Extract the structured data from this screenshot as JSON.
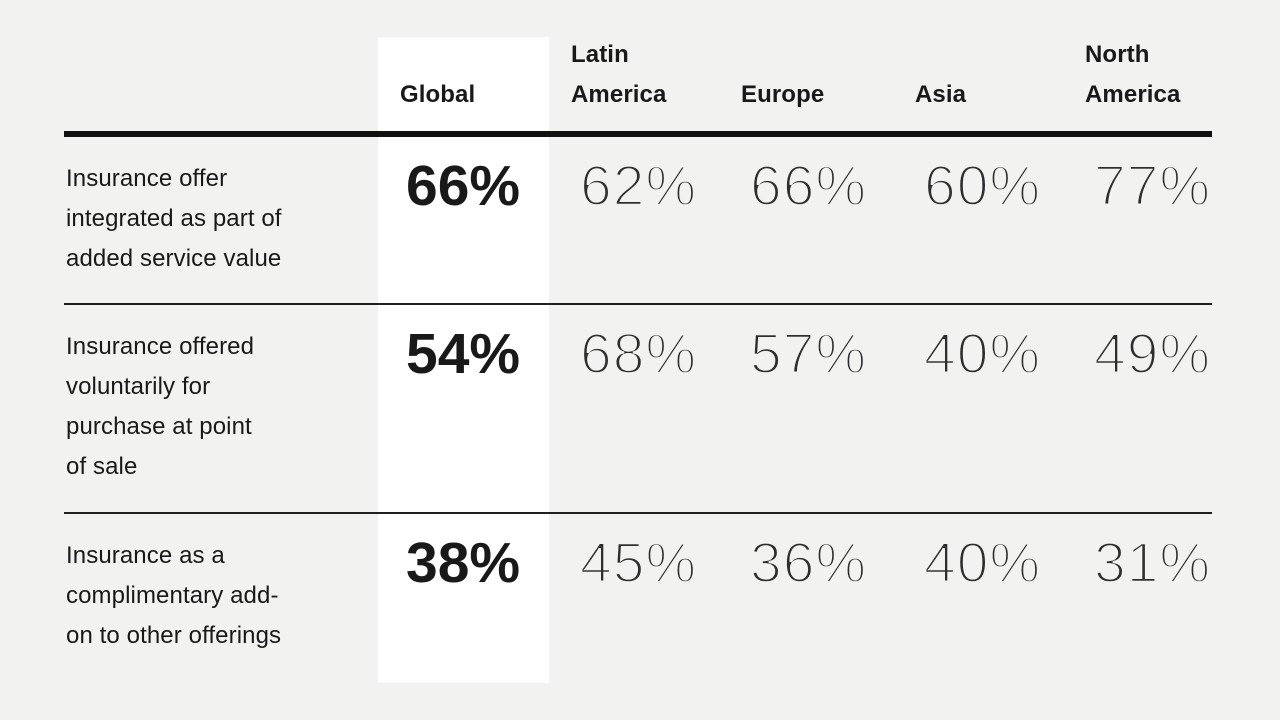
{
  "colors": {
    "background": "#f2f2f1",
    "highlight_column": "#ffffff",
    "heavy_rule": "#111111",
    "light_rule": "#1f1f1f",
    "text": "#191919"
  },
  "table": {
    "columns": [
      {
        "label": ""
      },
      {
        "label": "Global",
        "highlighted": true
      },
      {
        "label_lines": [
          "Latin",
          "America"
        ]
      },
      {
        "label": "Europe"
      },
      {
        "label": "Asia"
      },
      {
        "label_lines": [
          "North",
          "America"
        ]
      }
    ],
    "rows": [
      {
        "label_lines": [
          "Insurance offer",
          "integrated as part of",
          "added service value"
        ],
        "values": {
          "global": "66%",
          "latin_america": "62%",
          "europe": "66%",
          "asia": "60%",
          "north_america": "77%"
        }
      },
      {
        "label_lines": [
          "Insurance offered",
          "voluntarily for",
          "purchase at point",
          "of sale"
        ],
        "values": {
          "global": "54%",
          "latin_america": "68%",
          "europe": "57%",
          "asia": "40%",
          "north_america": "49%"
        }
      },
      {
        "label_lines": [
          "Insurance as a",
          "complimentary add-",
          "on to other offerings"
        ],
        "values": {
          "global": "38%",
          "latin_america": "45%",
          "europe": "36%",
          "asia": "40%",
          "north_america": "31%"
        }
      }
    ]
  },
  "chart_data": {
    "type": "table",
    "title": "",
    "columns": [
      "",
      "Global",
      "Latin America",
      "Europe",
      "Asia",
      "North America"
    ],
    "highlighted_column": "Global",
    "rows": [
      {
        "label": "Insurance offer integrated as part of added service value",
        "cells": [
          "66%",
          "62%",
          "66%",
          "60%",
          "77%"
        ]
      },
      {
        "label": "Insurance offered voluntarily for purchase at point of sale",
        "cells": [
          "54%",
          "68%",
          "57%",
          "40%",
          "49%"
        ]
      },
      {
        "label": "Insurance as a complimentary add-on to other offerings",
        "cells": [
          "38%",
          "45%",
          "36%",
          "40%",
          "31%"
        ]
      }
    ]
  }
}
